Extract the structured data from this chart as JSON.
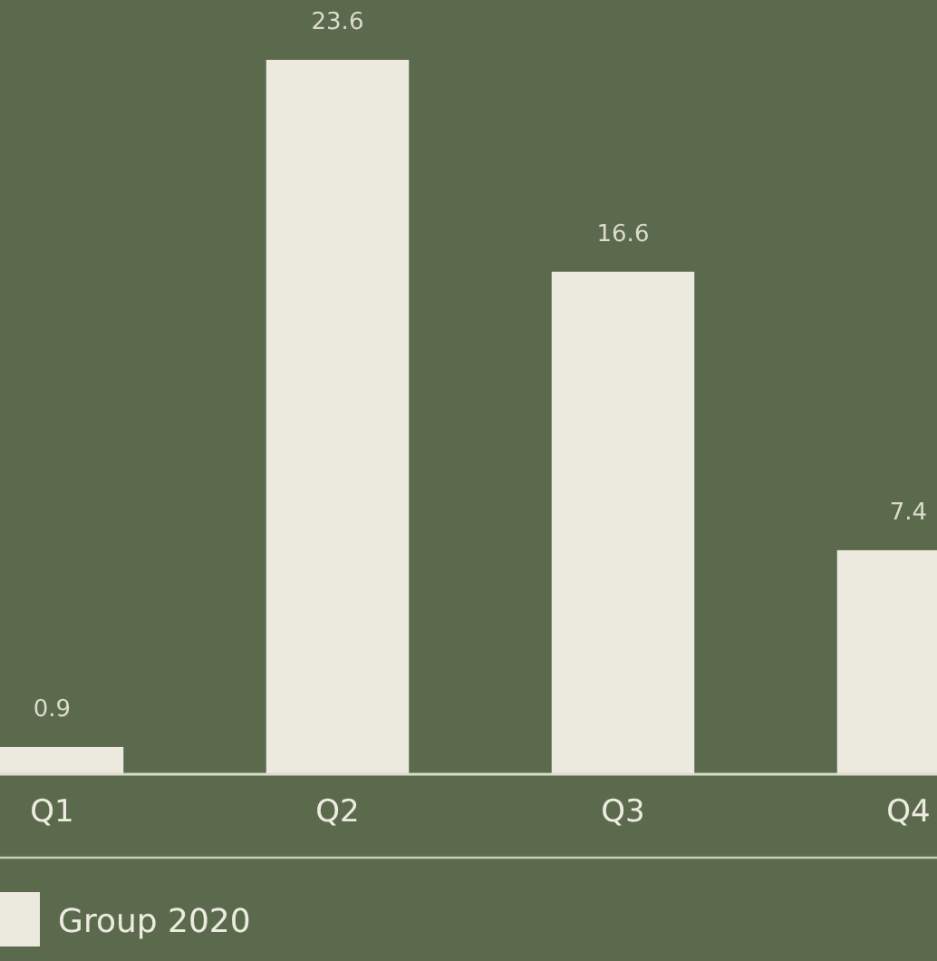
{
  "chart_data": {
    "type": "bar",
    "categories": [
      "Q1",
      "Q2",
      "Q3",
      "Q4"
    ],
    "series": [
      {
        "name": "Group 2020",
        "color": "#ece9df",
        "values": [
          0.9,
          23.6,
          16.6,
          7.4
        ]
      }
    ],
    "data_labels": true,
    "legend": "bottom left"
  }
}
